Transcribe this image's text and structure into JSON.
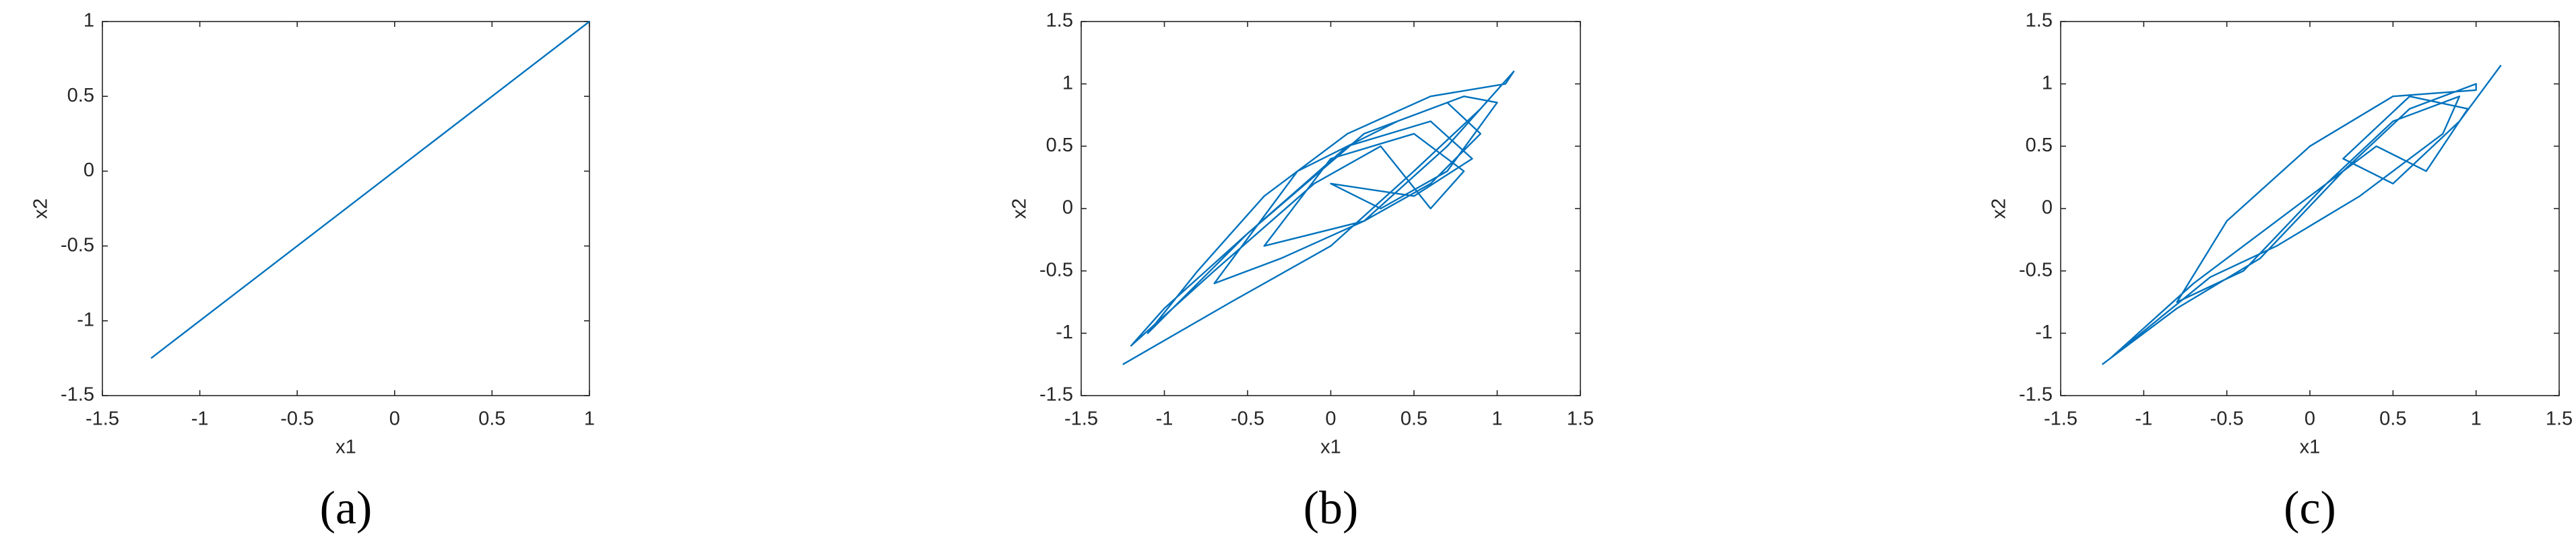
{
  "chart_data": [
    {
      "type": "line",
      "caption": "(a)",
      "xlabel": "x1",
      "ylabel": "x2",
      "x": [
        -1.25,
        1
      ],
      "series": [
        {
          "color": "#0072bd",
          "values": [
            -1.25,
            1
          ]
        }
      ],
      "xlim": [
        -1.5,
        1
      ],
      "ylim": [
        -1.5,
        1
      ],
      "xticks": [
        -1.5,
        -1,
        -0.5,
        0,
        0.5,
        1
      ],
      "yticks": [
        -1.5,
        -1,
        -0.5,
        0,
        0.5,
        1
      ],
      "grid": false
    },
    {
      "type": "line",
      "caption": "(b)",
      "xlabel": "x1",
      "ylabel": "x2",
      "x": [
        -1.25,
        -0.6,
        0,
        0.5,
        0.9,
        1.1,
        1.05,
        0.6,
        0.1,
        -0.4,
        -0.8,
        -1.1,
        -0.5,
        0.2,
        0.7,
        0.9,
        0.6,
        0.2,
        -0.3,
        -0.7,
        -0.2,
        0.4,
        0.8,
        1.0,
        0.7,
        0.3,
        0.0,
        0.5,
        0.85,
        0.6,
        0.1,
        -0.5,
        -1.0,
        -1.2,
        -0.7,
        -0.1,
        0.3,
        0.6,
        0.8,
        0.5,
        0.0,
        -0.4,
        0.2,
        0.7,
        1.1
      ],
      "series": [
        {
          "color": "#0072bd",
          "values": [
            -1.25,
            -0.75,
            -0.3,
            0.3,
            0.8,
            1.1,
            1.0,
            0.9,
            0.6,
            0.1,
            -0.5,
            -1.0,
            -0.2,
            0.6,
            0.85,
            0.6,
            0.2,
            -0.1,
            -0.4,
            -0.6,
            0.3,
            0.7,
            0.9,
            0.85,
            0.3,
            0.0,
            0.2,
            0.1,
            0.4,
            0.7,
            0.5,
            -0.2,
            -0.8,
            -1.1,
            -0.5,
            0.2,
            0.5,
            0.0,
            0.3,
            0.6,
            0.4,
            -0.3,
            -0.1,
            0.5,
            1.1
          ]
        }
      ],
      "xlim": [
        -1.5,
        1.5
      ],
      "ylim": [
        -1.5,
        1.5
      ],
      "xticks": [
        -1.5,
        -1,
        -0.5,
        0,
        0.5,
        1,
        1.5
      ],
      "yticks": [
        -1.5,
        -1,
        -0.5,
        0,
        0.5,
        1,
        1.5
      ],
      "grid": false
    },
    {
      "type": "line",
      "caption": "(c)",
      "xlabel": "x1",
      "ylabel": "x2",
      "x": [
        -1.25,
        -0.8,
        -0.3,
        0.2,
        0.6,
        1.0,
        1.0,
        0.5,
        0.0,
        -0.5,
        -0.8,
        -0.4,
        0.1,
        0.5,
        0.9,
        0.8,
        0.3,
        -0.2,
        -0.6,
        -1.2,
        -0.7,
        0.0,
        0.4,
        0.7,
        0.95,
        0.6,
        0.2,
        0.5,
        0.9,
        1.15
      ],
      "series": [
        {
          "color": "#0072bd",
          "values": [
            -1.25,
            -0.8,
            -0.4,
            0.3,
            0.8,
            1.0,
            0.95,
            0.9,
            0.5,
            -0.1,
            -0.75,
            -0.5,
            0.2,
            0.7,
            0.9,
            0.6,
            0.1,
            -0.3,
            -0.55,
            -1.2,
            -0.6,
            0.1,
            0.5,
            0.3,
            0.8,
            0.9,
            0.4,
            0.2,
            0.7,
            1.15
          ]
        }
      ],
      "xlim": [
        -1.5,
        1.5
      ],
      "ylim": [
        -1.5,
        1.5
      ],
      "xticks": [
        -1.5,
        -1,
        -0.5,
        0,
        0.5,
        1,
        1.5
      ],
      "yticks": [
        -1.5,
        -1,
        -0.5,
        0,
        0.5,
        1,
        1.5
      ],
      "grid": false
    }
  ]
}
